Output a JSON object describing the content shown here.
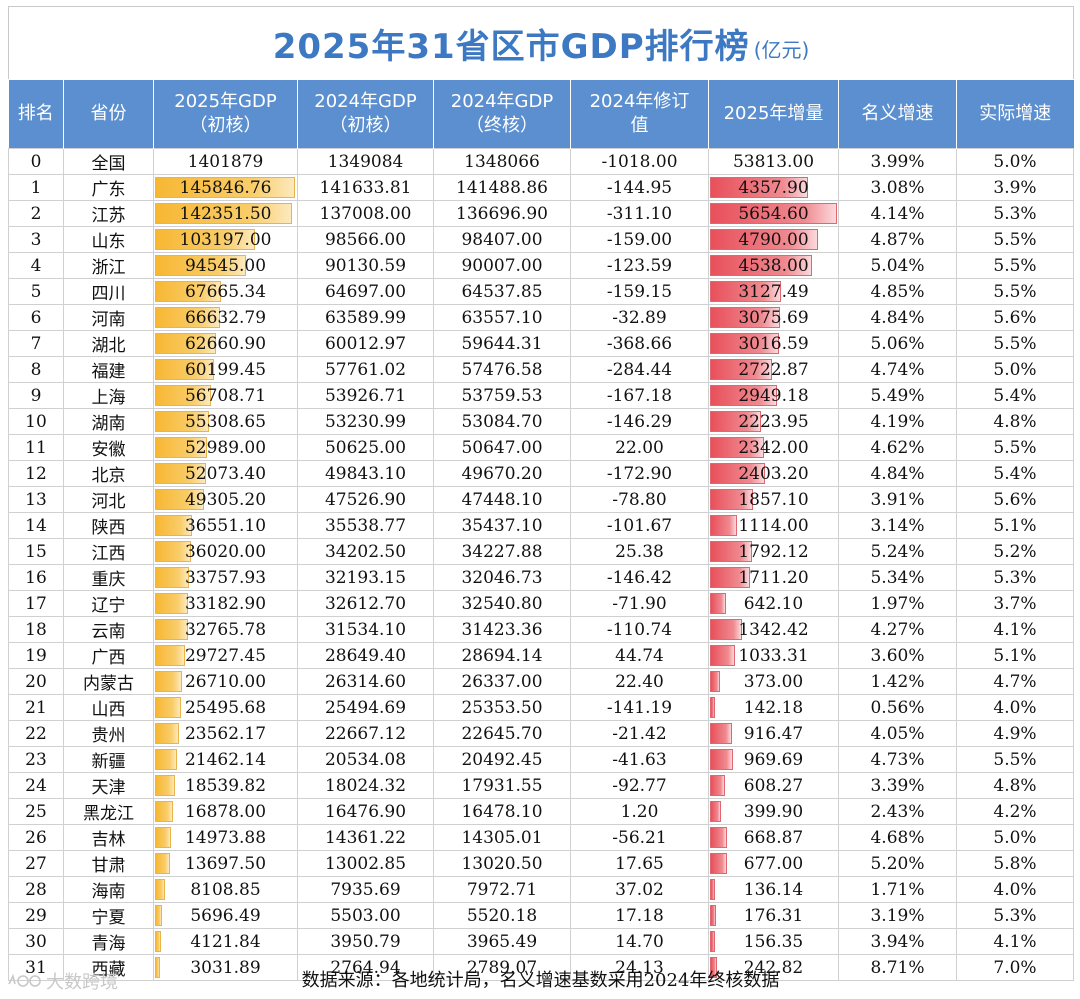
{
  "title": "2025年31省区市GDP排行榜",
  "title_unit": "(亿元)",
  "headers": [
    [
      "排名"
    ],
    [
      "省份"
    ],
    [
      "2025年GDP",
      "（初核）"
    ],
    [
      "2024年GDP",
      "（初核）"
    ],
    [
      "2024年GDP",
      "（终核）"
    ],
    [
      "2024年修订",
      "值"
    ],
    [
      "2025年增量"
    ],
    [
      "名义增速"
    ],
    [
      "实际增速"
    ]
  ],
  "rows": [
    [
      "0",
      "全国",
      "1401879",
      "1349084",
      "1348066",
      "-1018.00",
      "53813.00",
      "3.99%",
      "5.0%"
    ],
    [
      "1",
      "广东",
      "145846.76",
      "141633.81",
      "141488.86",
      "-144.95",
      "4357.90",
      "3.08%",
      "3.9%"
    ],
    [
      "2",
      "江苏",
      "142351.50",
      "137008.00",
      "136696.90",
      "-311.10",
      "5654.60",
      "4.14%",
      "5.3%"
    ],
    [
      "3",
      "山东",
      "103197.00",
      "98566.00",
      "98407.00",
      "-159.00",
      "4790.00",
      "4.87%",
      "5.5%"
    ],
    [
      "4",
      "浙江",
      "94545.00",
      "90130.59",
      "90007.00",
      "-123.59",
      "4538.00",
      "5.04%",
      "5.5%"
    ],
    [
      "5",
      "四川",
      "67665.34",
      "64697.00",
      "64537.85",
      "-159.15",
      "3127.49",
      "4.85%",
      "5.5%"
    ],
    [
      "6",
      "河南",
      "66632.79",
      "63589.99",
      "63557.10",
      "-32.89",
      "3075.69",
      "4.84%",
      "5.6%"
    ],
    [
      "7",
      "湖北",
      "62660.90",
      "60012.97",
      "59644.31",
      "-368.66",
      "3016.59",
      "5.06%",
      "5.5%"
    ],
    [
      "8",
      "福建",
      "60199.45",
      "57761.02",
      "57476.58",
      "-284.44",
      "2722.87",
      "4.74%",
      "5.0%"
    ],
    [
      "9",
      "上海",
      "56708.71",
      "53926.71",
      "53759.53",
      "-167.18",
      "2949.18",
      "5.49%",
      "5.4%"
    ],
    [
      "10",
      "湖南",
      "55308.65",
      "53230.99",
      "53084.70",
      "-146.29",
      "2223.95",
      "4.19%",
      "4.8%"
    ],
    [
      "11",
      "安徽",
      "52989.00",
      "50625.00",
      "50647.00",
      "22.00",
      "2342.00",
      "4.62%",
      "5.5%"
    ],
    [
      "12",
      "北京",
      "52073.40",
      "49843.10",
      "49670.20",
      "-172.90",
      "2403.20",
      "4.84%",
      "5.4%"
    ],
    [
      "13",
      "河北",
      "49305.20",
      "47526.90",
      "47448.10",
      "-78.80",
      "1857.10",
      "3.91%",
      "5.6%"
    ],
    [
      "14",
      "陕西",
      "36551.10",
      "35538.77",
      "35437.10",
      "-101.67",
      "1114.00",
      "3.14%",
      "5.1%"
    ],
    [
      "15",
      "江西",
      "36020.00",
      "34202.50",
      "34227.88",
      "25.38",
      "1792.12",
      "5.24%",
      "5.2%"
    ],
    [
      "16",
      "重庆",
      "33757.93",
      "32193.15",
      "32046.73",
      "-146.42",
      "1711.20",
      "5.34%",
      "5.3%"
    ],
    [
      "17",
      "辽宁",
      "33182.90",
      "32612.70",
      "32540.80",
      "-71.90",
      "642.10",
      "1.97%",
      "3.7%"
    ],
    [
      "18",
      "云南",
      "32765.78",
      "31534.10",
      "31423.36",
      "-110.74",
      "1342.42",
      "4.27%",
      "4.1%"
    ],
    [
      "19",
      "广西",
      "29727.45",
      "28649.40",
      "28694.14",
      "44.74",
      "1033.31",
      "3.60%",
      "5.1%"
    ],
    [
      "20",
      "内蒙古",
      "26710.00",
      "26314.60",
      "26337.00",
      "22.40",
      "373.00",
      "1.42%",
      "4.7%"
    ],
    [
      "21",
      "山西",
      "25495.68",
      "25494.69",
      "25353.50",
      "-141.19",
      "142.18",
      "0.56%",
      "4.0%"
    ],
    [
      "22",
      "贵州",
      "23562.17",
      "22667.12",
      "22645.70",
      "-21.42",
      "916.47",
      "4.05%",
      "4.9%"
    ],
    [
      "23",
      "新疆",
      "21462.14",
      "20534.08",
      "20492.45",
      "-41.63",
      "969.69",
      "4.73%",
      "5.5%"
    ],
    [
      "24",
      "天津",
      "18539.82",
      "18024.32",
      "17931.55",
      "-92.77",
      "608.27",
      "3.39%",
      "4.8%"
    ],
    [
      "25",
      "黑龙江",
      "16878.00",
      "16476.90",
      "16478.10",
      "1.20",
      "399.90",
      "2.43%",
      "4.2%"
    ],
    [
      "26",
      "吉林",
      "14973.88",
      "14361.22",
      "14305.01",
      "-56.21",
      "668.87",
      "4.68%",
      "5.0%"
    ],
    [
      "27",
      "甘肃",
      "13697.50",
      "13002.85",
      "13020.50",
      "17.65",
      "677.00",
      "5.20%",
      "5.8%"
    ],
    [
      "28",
      "海南",
      "8108.85",
      "7935.69",
      "7972.71",
      "37.02",
      "136.14",
      "1.71%",
      "4.0%"
    ],
    [
      "29",
      "宁夏",
      "5696.49",
      "5503.00",
      "5520.18",
      "17.18",
      "176.31",
      "3.19%",
      "5.3%"
    ],
    [
      "30",
      "青海",
      "4121.84",
      "3950.79",
      "3965.49",
      "14.70",
      "156.35",
      "3.94%",
      "4.1%"
    ],
    [
      "31",
      "西藏",
      "3031.89",
      "2764.94",
      "2789.07",
      "24.13",
      "242.82",
      "8.71%",
      "7.0%"
    ]
  ],
  "source": "数据来源：各地统计局，名义增速基数采用2024年终核数据",
  "watermark": "大数跨境",
  "colors": {
    "title": "#3d78c2",
    "header_bg": "#5b8fcf",
    "gdp_bar": "#f7b733",
    "increase_bar": "#e8505b"
  }
}
